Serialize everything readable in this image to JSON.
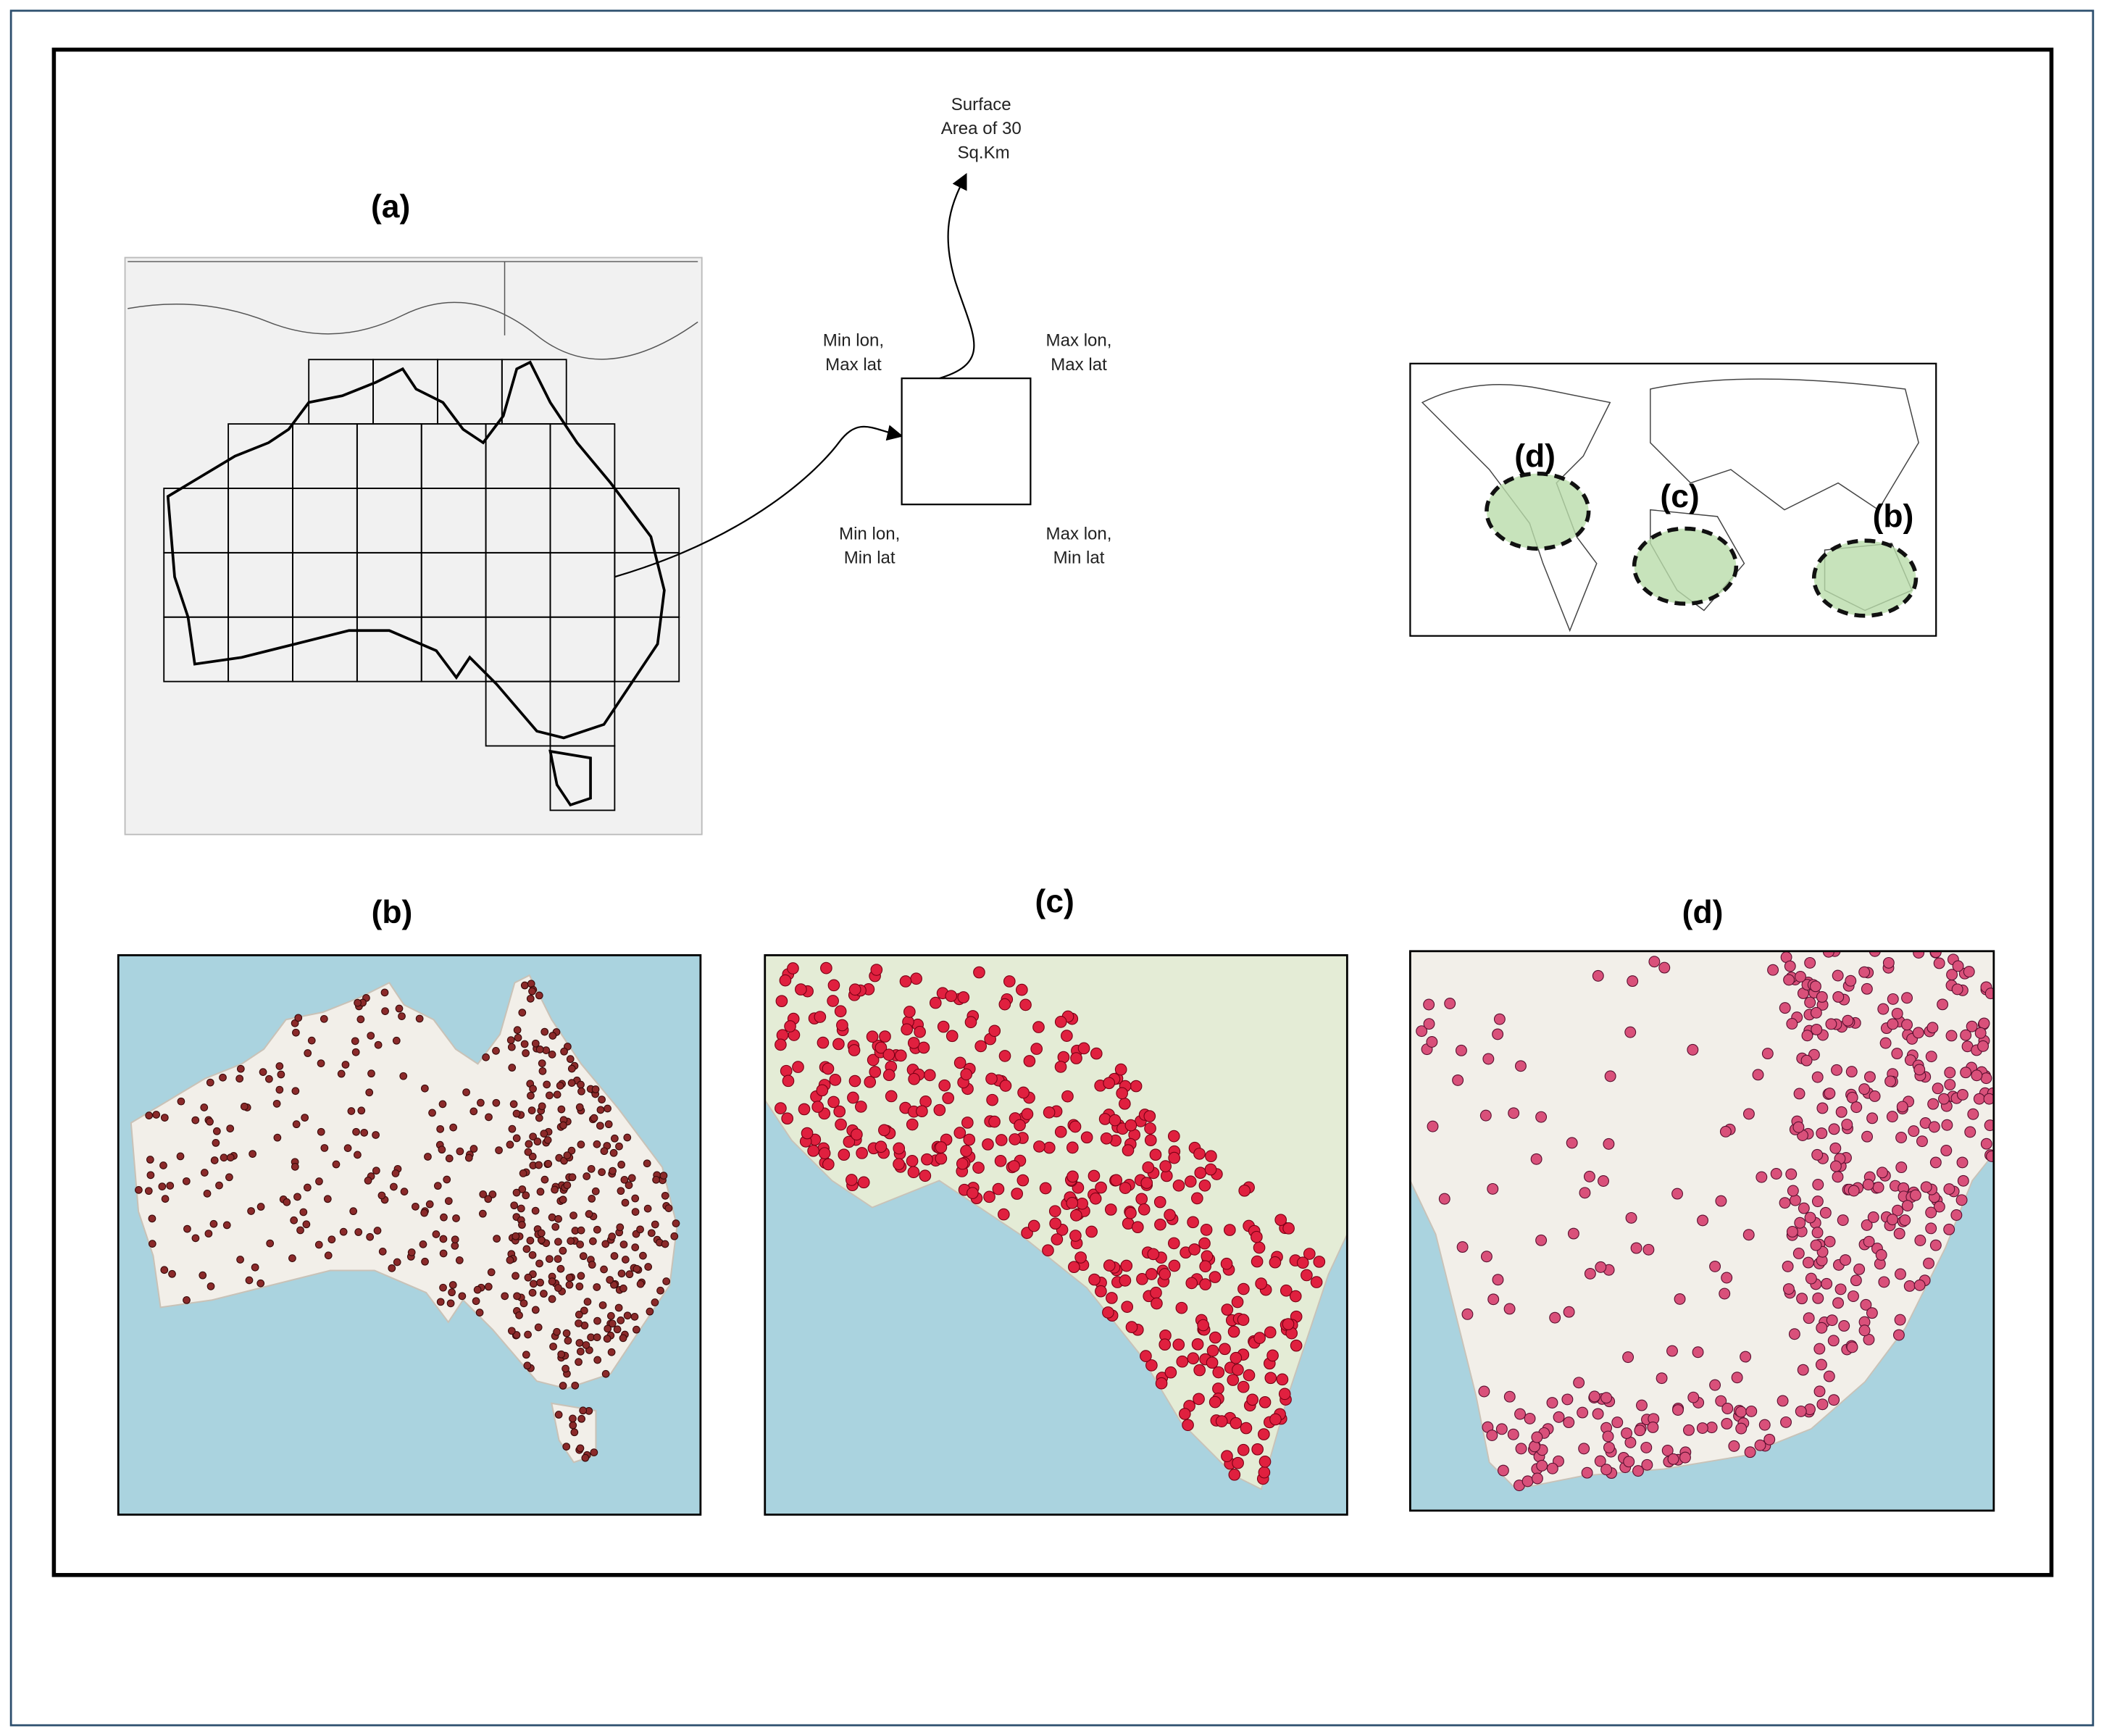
{
  "panel_a": {
    "label": "(a)",
    "surface_note": [
      "Surface",
      "Area of 30",
      "Sq.Km"
    ],
    "corners": {
      "top_left": [
        "Min lon,",
        "Max lat"
      ],
      "top_right": [
        "Max lon,",
        "Max lat"
      ],
      "bottom_left": [
        "Min lon,",
        "Min lat"
      ],
      "bottom_right": [
        "Max lon,",
        "Min lat"
      ]
    }
  },
  "world_map": {
    "labels": [
      "(d)",
      "(c)",
      "(b)"
    ]
  },
  "panels": [
    {
      "label": "(b)"
    },
    {
      "label": "(c)"
    },
    {
      "label": "(d)"
    }
  ]
}
